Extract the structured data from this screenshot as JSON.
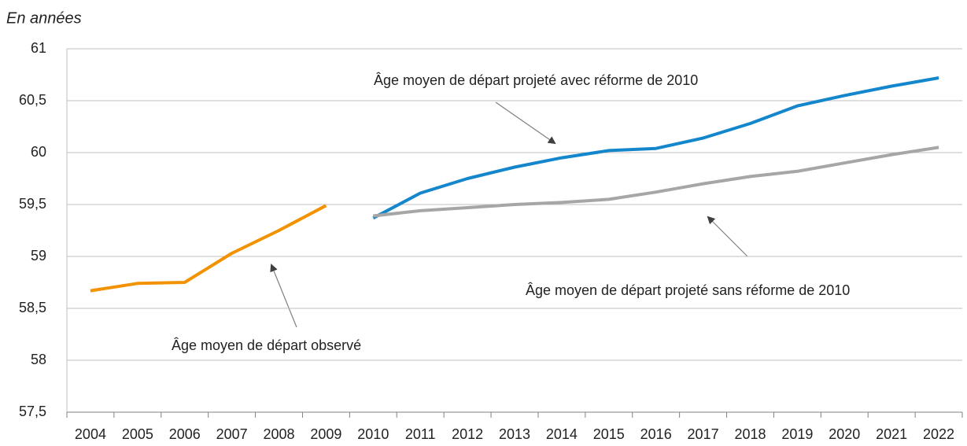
{
  "chart_data": {
    "type": "line",
    "unit_label": "En années",
    "categories": [
      "2004",
      "2005",
      "2006",
      "2007",
      "2008",
      "2009",
      "2010",
      "2011",
      "2012",
      "2013",
      "2014",
      "2015",
      "2016",
      "2017",
      "2018",
      "2019",
      "2020",
      "2021",
      "2022"
    ],
    "series": [
      {
        "name": "Âge moyen de départ observé",
        "color": "#f39200",
        "values": [
          58.67,
          58.74,
          58.75,
          59.03,
          59.25,
          59.49,
          null,
          null,
          null,
          null,
          null,
          null,
          null,
          null,
          null,
          null,
          null,
          null,
          null
        ]
      },
      {
        "name": "Âge moyen de départ projeté avec réforme de 2010",
        "color": "#1486cc",
        "values": [
          null,
          null,
          null,
          null,
          null,
          null,
          59.37,
          59.61,
          59.75,
          59.86,
          59.95,
          60.02,
          60.04,
          60.14,
          60.28,
          60.45,
          60.55,
          60.64,
          60.72
        ]
      },
      {
        "name": "Âge moyen de départ projeté sans réforme de 2010",
        "color": "#a6a6a6",
        "values": [
          null,
          null,
          null,
          null,
          null,
          null,
          59.39,
          59.44,
          59.47,
          59.5,
          59.52,
          59.55,
          59.62,
          59.7,
          59.77,
          59.82,
          59.9,
          59.98,
          60.05
        ]
      }
    ],
    "ylim": [
      57.5,
      61
    ],
    "yticks": [
      {
        "value": 57.5,
        "label": "57,5"
      },
      58,
      {
        "value": 58.5,
        "label": "58,5"
      },
      59,
      {
        "value": 59.5,
        "label": "59,5"
      },
      60,
      {
        "value": 60.5,
        "label": "60,5"
      },
      61
    ],
    "grid": true
  }
}
